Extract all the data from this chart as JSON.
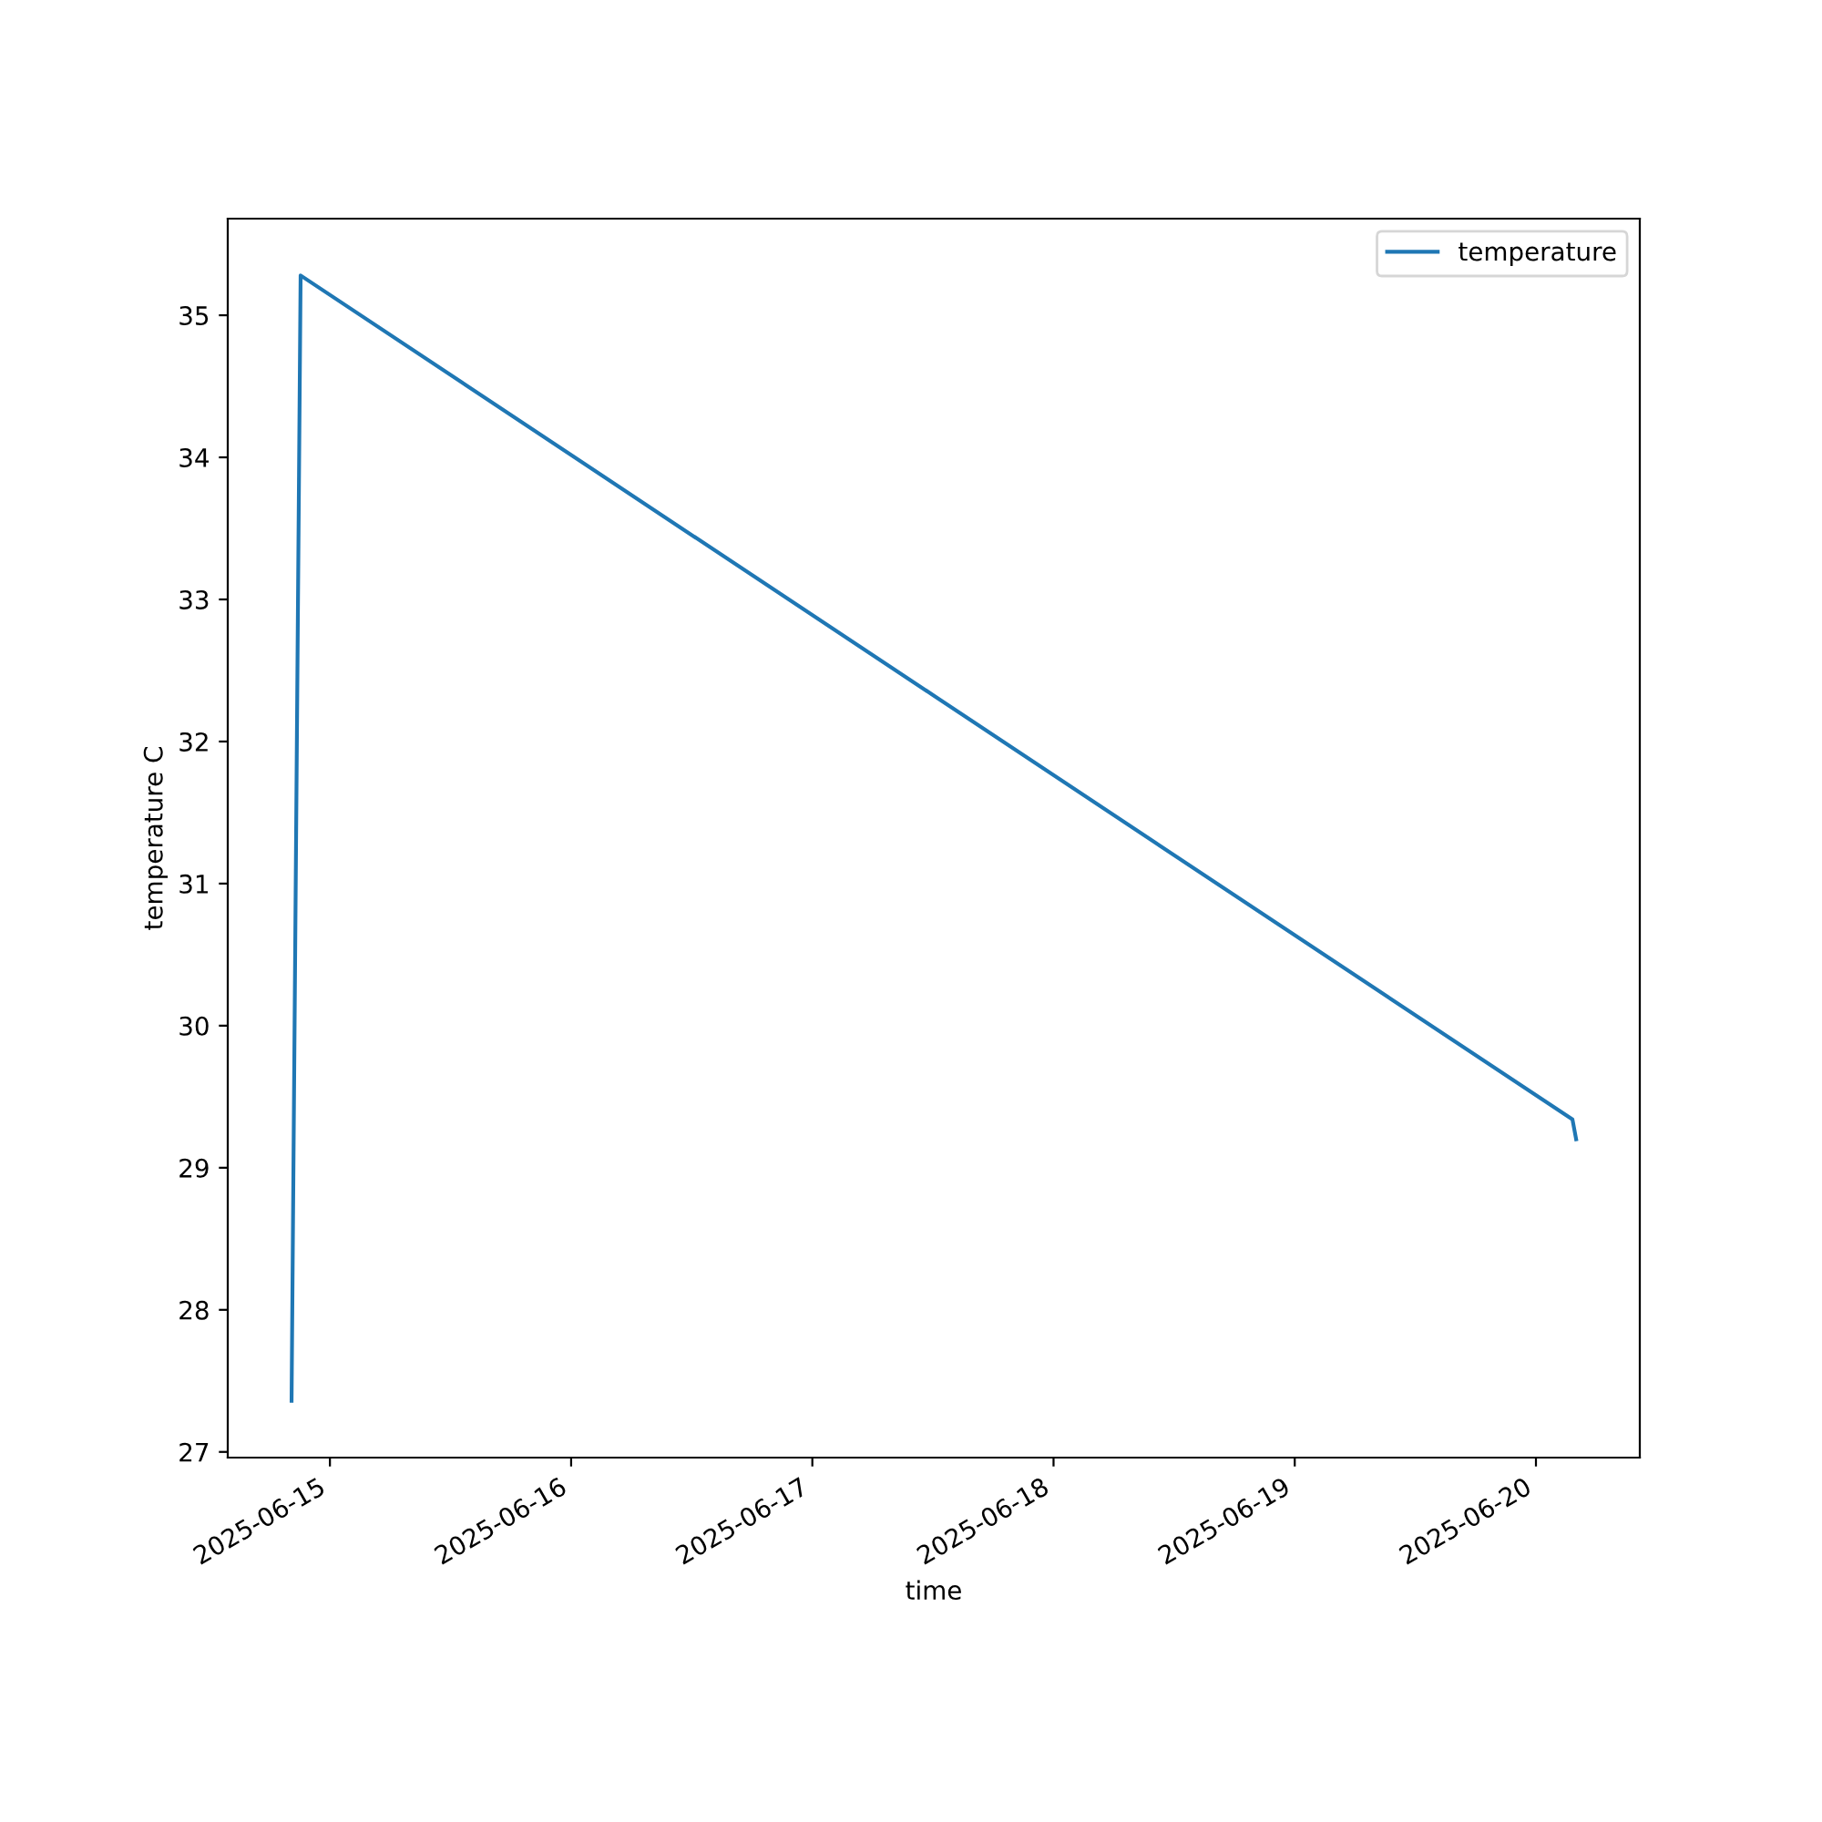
{
  "chart_data": {
    "type": "line",
    "xlabel": "time",
    "ylabel": "temperature C",
    "x": [
      "2025-06-14T20:11",
      "2025-06-14T21:05",
      "2025-06-20T03:38",
      "2025-06-20T04:00"
    ],
    "series": [
      {
        "name": "temperature",
        "color": "#1f77b4",
        "values": [
          27.36,
          35.28,
          29.34,
          29.2
        ]
      }
    ],
    "xlim": [
      "2025-06-14T13:50",
      "2025-06-20T10:20"
    ],
    "xticks": [
      "2025-06-15",
      "2025-06-16",
      "2025-06-17",
      "2025-06-18",
      "2025-06-19",
      "2025-06-20"
    ],
    "ylim": [
      26.96,
      35.68
    ],
    "yticks": [
      27,
      28,
      29,
      30,
      31,
      32,
      33,
      34,
      35
    ],
    "legend": "upper right",
    "grid": false
  }
}
